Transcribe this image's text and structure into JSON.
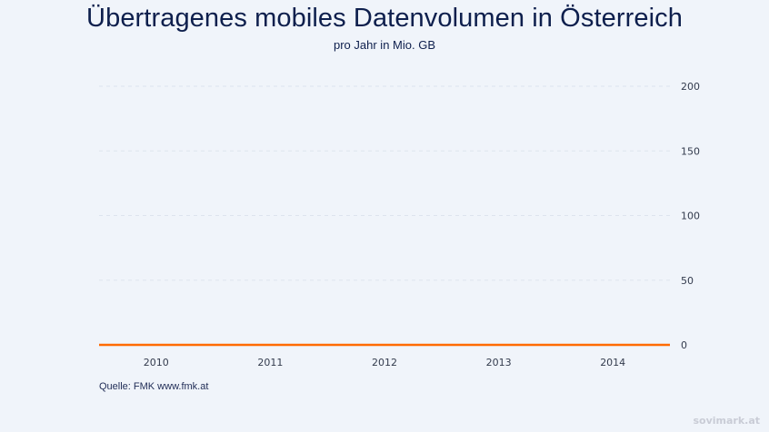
{
  "chart_data": {
    "type": "line",
    "title": "Übertragenes mobiles Datenvolumen in Österreich",
    "subtitle": "pro Jahr in Mio. GB",
    "categories": [
      "2010",
      "2011",
      "2012",
      "2013",
      "2014"
    ],
    "series": [
      {
        "color": "#ff6a00",
        "values": [
          0,
          0,
          0,
          0,
          0
        ]
      }
    ],
    "ylim": [
      0,
      200
    ],
    "yticks": [
      0,
      50,
      100,
      150,
      200
    ],
    "y_axis_side": "right",
    "grid": true,
    "source": "Quelle: FMK www.fmk.at"
  },
  "watermark": "sovimark.at"
}
